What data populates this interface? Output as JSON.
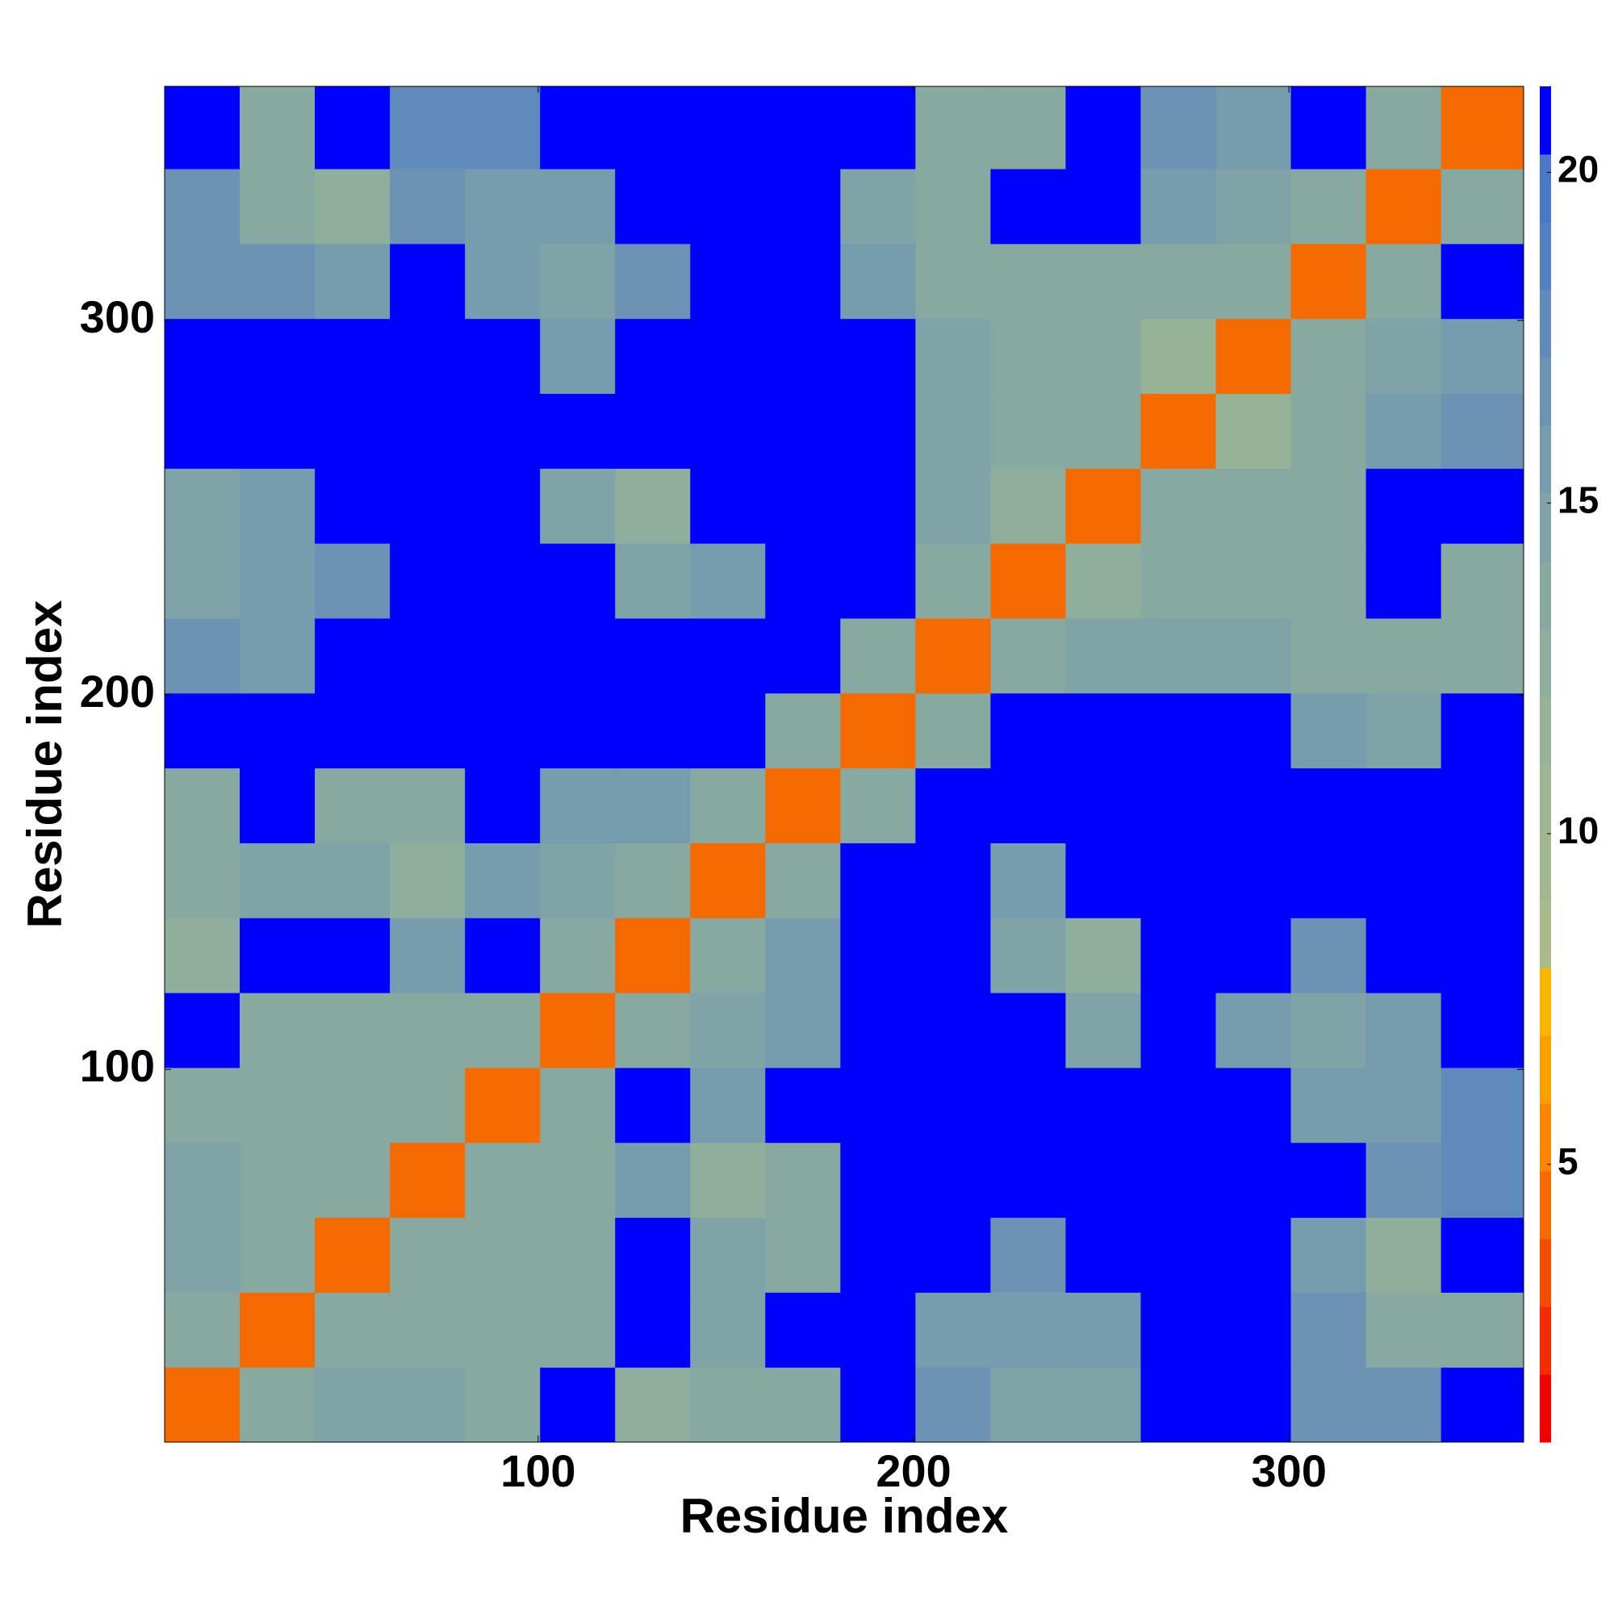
{
  "chart_data": {
    "type": "heatmap",
    "xlabel": "Residue index",
    "ylabel": "Residue index",
    "xlim": [
      0.5,
      362.5
    ],
    "ylim": [
      0.5,
      362.5
    ],
    "xticks": [
      100,
      200,
      300
    ],
    "yticks": [
      100,
      200,
      300
    ],
    "x_bins": [
      0.5,
      20.5,
      40.5,
      60.5,
      80.5,
      100.5,
      120.5,
      140.5,
      160.5,
      180.5,
      200.5,
      220.5,
      240.5,
      260.5,
      280.5,
      300.5,
      320.5,
      340.5,
      362.5
    ],
    "y_bins": [
      0.5,
      20.5,
      40.5,
      60.5,
      80.5,
      100.5,
      120.5,
      140.5,
      160.5,
      180.5,
      200.5,
      220.5,
      240.5,
      260.5,
      280.5,
      300.5,
      320.5,
      340.5,
      362.5
    ],
    "z": [
      [
        4,
        14,
        15,
        15,
        14,
        21,
        13,
        14,
        14,
        21,
        17,
        15,
        15,
        21,
        21,
        17,
        17,
        21
      ],
      [
        14,
        4,
        14,
        14,
        14,
        14,
        21,
        15,
        21,
        21,
        16,
        16,
        16,
        21,
        21,
        17,
        14,
        14
      ],
      [
        15,
        14,
        4,
        14,
        14,
        14,
        21,
        15,
        14,
        21,
        21,
        17,
        21,
        21,
        21,
        16,
        13,
        21
      ],
      [
        15,
        14,
        14,
        4,
        14,
        14,
        16,
        13,
        14,
        21,
        21,
        21,
        21,
        21,
        21,
        21,
        17,
        18
      ],
      [
        14,
        14,
        14,
        14,
        4,
        14,
        21,
        16,
        21,
        21,
        21,
        21,
        21,
        21,
        21,
        16,
        16,
        18
      ],
      [
        21,
        14,
        14,
        14,
        14,
        4,
        14,
        15,
        16,
        21,
        21,
        21,
        15,
        21,
        16,
        15,
        16,
        21
      ],
      [
        13,
        21,
        21,
        16,
        21,
        14,
        4,
        14,
        16,
        21,
        21,
        15,
        13,
        21,
        21,
        17,
        21,
        21
      ],
      [
        14,
        15,
        15,
        13,
        16,
        15,
        14,
        4,
        14,
        21,
        21,
        16,
        21,
        21,
        21,
        21,
        21,
        21
      ],
      [
        14,
        21,
        14,
        14,
        21,
        16,
        16,
        14,
        4,
        14,
        21,
        21,
        21,
        21,
        21,
        21,
        21,
        21
      ],
      [
        21,
        21,
        21,
        21,
        21,
        21,
        21,
        21,
        14,
        4,
        14,
        21,
        21,
        21,
        21,
        16,
        15,
        21
      ],
      [
        17,
        16,
        21,
        21,
        21,
        21,
        21,
        21,
        21,
        14,
        4,
        14,
        15,
        15,
        15,
        14,
        14,
        14
      ],
      [
        15,
        16,
        17,
        21,
        21,
        21,
        15,
        16,
        21,
        21,
        14,
        4,
        13,
        14,
        14,
        14,
        21,
        14
      ],
      [
        15,
        16,
        21,
        21,
        21,
        15,
        13,
        21,
        21,
        21,
        15,
        13,
        4,
        14,
        14,
        14,
        21,
        21
      ],
      [
        21,
        21,
        21,
        21,
        21,
        21,
        21,
        21,
        21,
        21,
        15,
        14,
        14,
        4,
        12,
        14,
        16,
        17
      ],
      [
        21,
        21,
        21,
        21,
        21,
        16,
        21,
        21,
        21,
        21,
        15,
        14,
        14,
        12,
        4,
        14,
        15,
        16
      ],
      [
        17,
        17,
        16,
        21,
        16,
        15,
        17,
        21,
        21,
        16,
        14,
        14,
        14,
        14,
        14,
        4,
        14,
        21
      ],
      [
        17,
        14,
        13,
        17,
        16,
        16,
        21,
        21,
        21,
        15,
        14,
        21,
        21,
        16,
        15,
        14,
        4,
        14
      ],
      [
        21,
        14,
        21,
        18,
        18,
        21,
        21,
        21,
        21,
        21,
        14,
        14,
        21,
        17,
        16,
        21,
        14,
        4
      ]
    ],
    "clim": [
      0.8,
      21.3
    ],
    "colors": [
      "#f00000",
      "#f52a00",
      "#f54c00",
      "#f56a00",
      "#f78800",
      "#f7a000",
      "#f9b400",
      "#a8b98a",
      "#a3b78e",
      "#9db592",
      "#96b297",
      "#8fae9c",
      "#87a9a1",
      "#7fa3a7",
      "#769cad",
      "#6c93b3",
      "#608aba",
      "#5380bf",
      "#4a78c4",
      "#0000ff"
    ],
    "cticks": [
      5,
      10,
      15,
      20
    ]
  }
}
